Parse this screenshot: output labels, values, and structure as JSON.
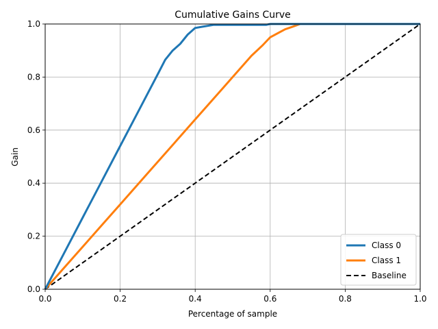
{
  "chart_data": {
    "type": "line",
    "title": "Cumulative Gains Curve",
    "xlabel": "Percentage of sample",
    "ylabel": "Gain",
    "xlim": [
      0,
      1
    ],
    "ylim": [
      0,
      1
    ],
    "grid": true,
    "legend_position": "bottom-right",
    "x_ticks": [
      0.0,
      0.2,
      0.4,
      0.6,
      0.8,
      1.0
    ],
    "x_tick_labels": [
      "0.0",
      "0.2",
      "0.4",
      "0.6",
      "0.8",
      "1.0"
    ],
    "y_ticks": [
      0.0,
      0.2,
      0.4,
      0.6,
      0.8,
      1.0
    ],
    "y_tick_labels": [
      "0.0",
      "0.2",
      "0.4",
      "0.6",
      "0.8",
      "1.0"
    ],
    "series": [
      {
        "name": "Class 0",
        "color": "#1f77b4",
        "style": "solid",
        "x": [
          0.0,
          0.05,
          0.1,
          0.15,
          0.2,
          0.25,
          0.3,
          0.32,
          0.34,
          0.36,
          0.38,
          0.4,
          0.42,
          0.45,
          0.5,
          0.55,
          0.59,
          0.6,
          0.7,
          0.8,
          1.0
        ],
        "y": [
          0.0,
          0.135,
          0.27,
          0.405,
          0.54,
          0.675,
          0.81,
          0.865,
          0.9,
          0.925,
          0.96,
          0.985,
          0.99,
          0.997,
          0.997,
          0.997,
          0.997,
          1.0,
          1.0,
          1.0,
          1.0
        ]
      },
      {
        "name": "Class 1",
        "color": "#ff7f0e",
        "style": "solid",
        "x": [
          0.0,
          0.05,
          0.1,
          0.15,
          0.2,
          0.25,
          0.3,
          0.35,
          0.4,
          0.45,
          0.5,
          0.55,
          0.58,
          0.6,
          0.62,
          0.64,
          0.66,
          0.68,
          0.7,
          1.0
        ],
        "y": [
          0.0,
          0.08,
          0.16,
          0.24,
          0.32,
          0.4,
          0.48,
          0.56,
          0.64,
          0.72,
          0.8,
          0.88,
          0.92,
          0.95,
          0.965,
          0.98,
          0.99,
          1.0,
          1.0,
          1.0
        ]
      },
      {
        "name": "Baseline",
        "color": "#000000",
        "style": "dashed",
        "x": [
          0.0,
          1.0
        ],
        "y": [
          0.0,
          1.0
        ]
      }
    ]
  }
}
